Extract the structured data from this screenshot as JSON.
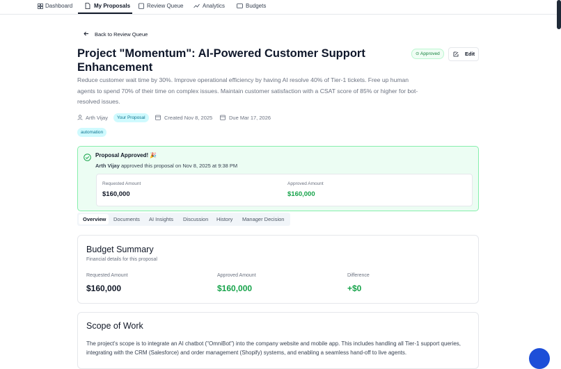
{
  "nav": [
    "Dashboard",
    "My Proposals",
    "Review Queue",
    "Analytics",
    "Budgets"
  ],
  "back": "Back to Review Queue",
  "title": "Project \"Momentum\": AI-Powered Customer Support Enhancement",
  "status": "Approved",
  "edit": "Edit",
  "description": "Reduce customer wait time by 30%. Improve operational efficiency by having AI resolve 40% of Tier-1 tickets. Free up human agents to spend 70% of their time on complex issues. Maintain customer satisfaction with a CSAT score of 85% or higher for bot-resolved issues.",
  "meta": {
    "author": "Arth Vijay",
    "badge": "Your Proposal",
    "created": "Created Nov 8, 2025",
    "due": "Due Mar 17, 2026"
  },
  "tags": [
    "automation"
  ],
  "approval": {
    "title": "Proposal Approved! 🎉",
    "approver": "Arth Vijay",
    "text": "approved this proposal on Nov 8, 2025 at 9:38 PM",
    "requested_label": "Requested Amount",
    "requested": "$160,000",
    "approved_label": "Approved Amount",
    "approved": "$160,000"
  },
  "tabs": [
    "Overview",
    "Documents",
    "AI Insights",
    "Discussion",
    "History",
    "Manager Decision"
  ],
  "budget": {
    "title": "Budget Summary",
    "subtitle": "Financial details for this proposal",
    "items": [
      {
        "label": "Requested Amount",
        "value": "$160,000"
      },
      {
        "label": "Approved Amount",
        "value": "$160,000"
      },
      {
        "label": "Difference",
        "value": "+$0"
      }
    ]
  },
  "scope": {
    "title": "Scope of Work",
    "text": "The project's scope is to integrate an AI chatbot (\"OmniBot\") into the company website and mobile app. This includes handling all Tier-1 support queries, integrating with the CRM (Salesforce) and order management (Shopify) systems, and enabling a seamless hand-off to live agents."
  }
}
